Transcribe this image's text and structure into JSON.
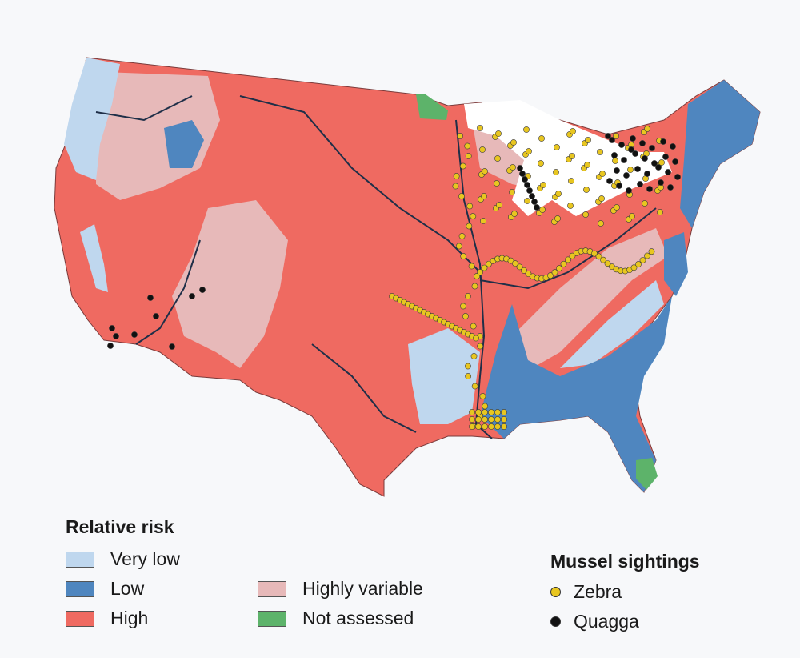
{
  "map": {
    "risk_colors": {
      "very_low": "#bfd7ee",
      "low": "#4f86bf",
      "high": "#ef6a61",
      "highly_variable": "#e7b9b9",
      "not_assessed": "#5db36a"
    },
    "sighting_colors": {
      "zebra": "#e8c620",
      "quagga": "#111111"
    }
  },
  "legend_risk": {
    "title": "Relative risk",
    "items": [
      {
        "key": "very_low",
        "label": "Very low"
      },
      {
        "key": "low",
        "label": "Low"
      },
      {
        "key": "high",
        "label": "High"
      },
      {
        "key": "highly_variable",
        "label": "Highly variable"
      },
      {
        "key": "not_assessed",
        "label": "Not assessed"
      }
    ]
  },
  "legend_sightings": {
    "title": "Mussel sightings",
    "items": [
      {
        "key": "zebra",
        "label": "Zebra"
      },
      {
        "key": "quagga",
        "label": "Quagga"
      }
    ]
  }
}
